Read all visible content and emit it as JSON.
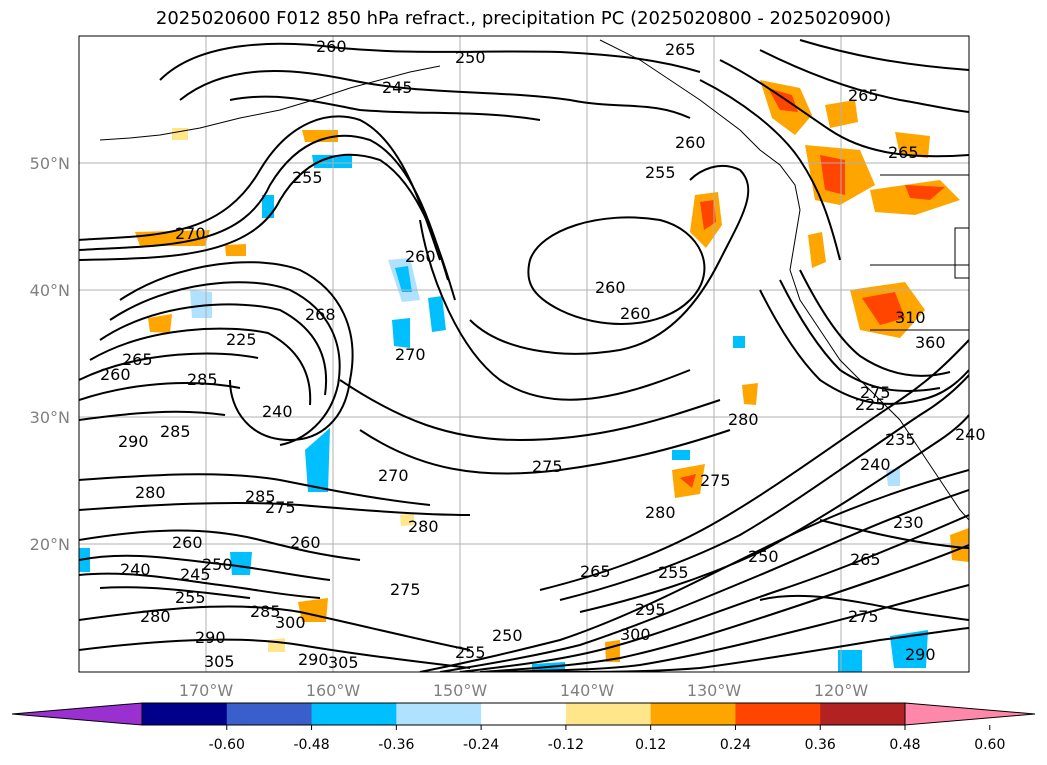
{
  "title": "2025020600 F012 850 hPa refract., precipitation PC (2025020800 - 2025020900)",
  "map": {
    "lat_labels": [
      "50°N",
      "40°N",
      "30°N",
      "20°N"
    ],
    "lon_labels": [
      "170°W",
      "160°W",
      "150°W",
      "140°W",
      "130°W",
      "120°W"
    ],
    "contour_labels": [
      "260",
      "250",
      "245",
      "265",
      "265",
      "260",
      "255",
      "255",
      "270",
      "260",
      "260",
      "260",
      "265",
      "260",
      "268",
      "270",
      "285",
      "240",
      "225",
      "290",
      "285",
      "280",
      "285",
      "275",
      "270",
      "280",
      "275",
      "280",
      "280",
      "275",
      "260",
      "240",
      "245",
      "250",
      "255",
      "265",
      "275",
      "280",
      "285",
      "290",
      "300",
      "305",
      "290",
      "305",
      "250",
      "255",
      "295",
      "300",
      "250",
      "255",
      "275",
      "265",
      "240",
      "235",
      "230",
      "225",
      "275",
      "290",
      "310",
      "360",
      "240",
      "265",
      "260"
    ],
    "grid": true,
    "colors": {
      "land_outline": "#000000",
      "contour": "#000000",
      "grid": "#b0b0b0"
    }
  },
  "colorbar": {
    "ticks": [
      "-0.60",
      "-0.48",
      "-0.36",
      "-0.24",
      "-0.12",
      "0.12",
      "0.24",
      "0.36",
      "0.48",
      "0.60"
    ],
    "colors": [
      "#9b30d0",
      "#00008b",
      "#3a5fcd",
      "#00bfff",
      "#b0e2ff",
      "#ffffff",
      "#ffe68a",
      "#ffa500",
      "#ff4500",
      "#b22222",
      "#ff88aa"
    ]
  }
}
